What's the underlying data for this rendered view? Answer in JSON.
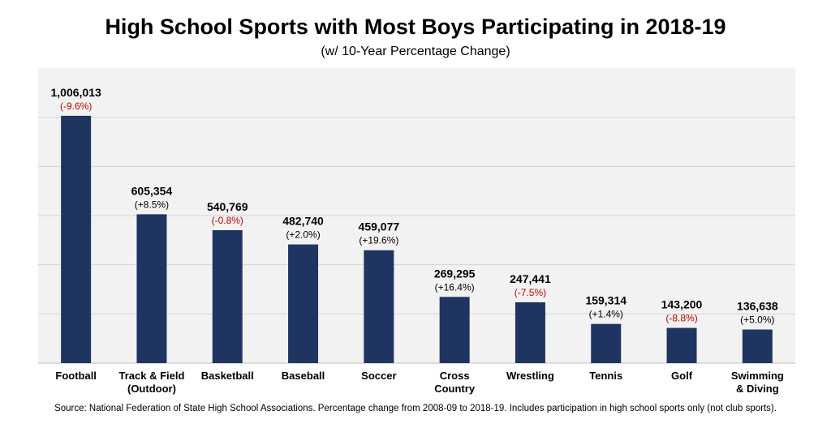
{
  "title": "High School Sports with Most Boys Participating in 2018-19",
  "subtitle": "(w/ 10-Year Percentage Change)",
  "source": "Source: National Federation of State High School Associations. Percentage change from 2008-09 to 2018-19. Includes participation in high school sports only (not club sports).",
  "colors": {
    "bar": "#1f3461",
    "negative": "#c00000",
    "positive": "#000000",
    "plot_bg": "#f2f2f2",
    "grid": "#d4d4d4"
  },
  "chart_data": {
    "type": "bar",
    "title": "High School Sports with Most Boys Participating in 2018-19",
    "subtitle": "(w/ 10-Year Percentage Change)",
    "ylim": [
      0,
      1200000
    ],
    "grid": true,
    "categories": [
      [
        "Football"
      ],
      [
        "Track & Field",
        "(Outdoor)"
      ],
      [
        "Basketball"
      ],
      [
        "Baseball"
      ],
      [
        "Soccer"
      ],
      [
        "Cross",
        "Country"
      ],
      [
        "Wrestling"
      ],
      [
        "Tennis"
      ],
      [
        "Golf"
      ],
      [
        "Swimming",
        "& Diving"
      ]
    ],
    "values": [
      1006013,
      605354,
      540769,
      482740,
      459077,
      269295,
      247441,
      159314,
      143200,
      136638
    ],
    "value_labels": [
      "1,006,013",
      "605,354",
      "540,769",
      "482,740",
      "459,077",
      "269,295",
      "247,441",
      "159,314",
      "143,200",
      "136,638"
    ],
    "pct_change": [
      -9.6,
      8.5,
      -0.8,
      2.0,
      19.6,
      16.4,
      -7.5,
      1.4,
      -8.8,
      5.0
    ],
    "pct_labels": [
      "(-9.6%)",
      "(+8.5%)",
      "(-0.8%)",
      "(+2.0%)",
      "(+19.6%)",
      "(+16.4%)",
      "(-7.5%)",
      "(+1.4%)",
      "(-8.8%)",
      "(+5.0%)"
    ]
  }
}
